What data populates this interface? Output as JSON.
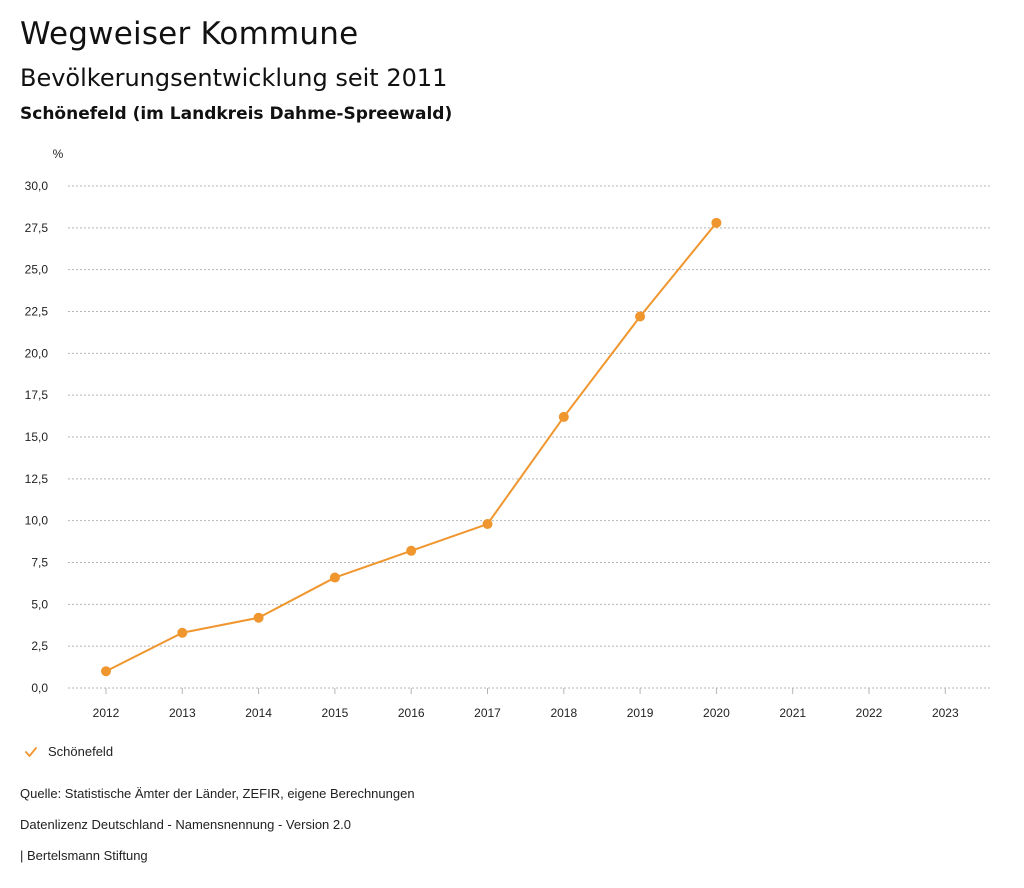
{
  "header": {
    "title": "Wegweiser Kommune",
    "subtitle": "Bevölkerungsentwicklung seit 2011",
    "region": "Schönefeld (im Landkreis Dahme-Spreewald)"
  },
  "colors": {
    "series": "#f0962e",
    "grid": "#b5b5b5",
    "text": "#222222"
  },
  "chart_data": {
    "type": "line",
    "title": "Bevölkerungsentwicklung seit 2011",
    "ylabel": "%",
    "xlabel": "",
    "ylim": [
      0,
      30
    ],
    "yticks": [
      "0,0",
      "2,5",
      "5,0",
      "7,5",
      "10,0",
      "12,5",
      "15,0",
      "17,5",
      "20,0",
      "22,5",
      "25,0",
      "27,5",
      "30,0"
    ],
    "ytick_values": [
      0,
      2.5,
      5,
      7.5,
      10,
      12.5,
      15,
      17.5,
      20,
      22.5,
      25,
      27.5,
      30
    ],
    "categories": [
      "2012",
      "2013",
      "2014",
      "2015",
      "2016",
      "2017",
      "2018",
      "2019",
      "2020",
      "2021",
      "2022",
      "2023"
    ],
    "grid": true,
    "legend_position": "bottom-left",
    "series": [
      {
        "name": "Schönefeld",
        "values": [
          1.0,
          3.3,
          4.2,
          6.6,
          8.2,
          9.8,
          16.2,
          22.2,
          27.8,
          null,
          null,
          null
        ]
      }
    ]
  },
  "legend": {
    "items": [
      {
        "label": "Schönefeld",
        "icon": "check-icon"
      }
    ]
  },
  "footer": {
    "source": "Quelle: Statistische Ämter der Länder, ZEFIR, eigene Berechnungen",
    "license": "Datenlizenz Deutschland - Namensnennung - Version 2.0",
    "credit": "| Bertelsmann Stiftung"
  }
}
